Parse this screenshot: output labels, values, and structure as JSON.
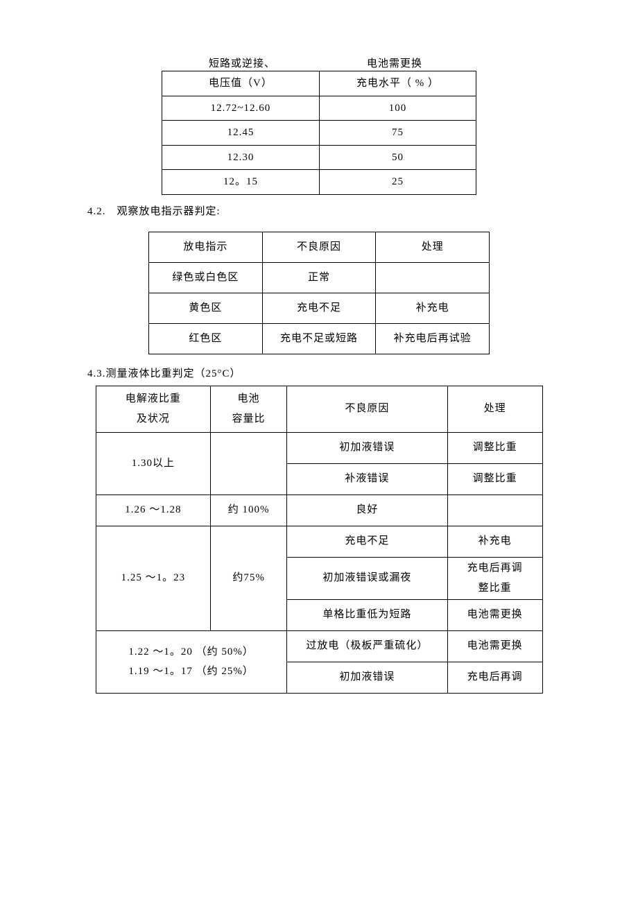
{
  "lineAbove": {
    "left": "短路或逆接、",
    "right": "电池需更换"
  },
  "table1": {
    "columns": [
      "电压值（V）",
      "充电水平（ % ）"
    ],
    "rows": [
      [
        "12.72~12.60",
        "100"
      ],
      [
        "12.45",
        "75"
      ],
      [
        "12.30",
        "50"
      ],
      [
        "12。15",
        "25"
      ]
    ]
  },
  "section42_title": "4.2.　观察放电指示器判定:",
  "table2": {
    "columns": [
      "放电指示",
      "不良原因",
      "处理"
    ],
    "rows": [
      [
        "绿色或白色区",
        "正常",
        ""
      ],
      [
        "黄色区",
        "充电不足",
        "补充电"
      ],
      [
        "红色区",
        "充电不足或短路",
        "补充电后再试验"
      ]
    ]
  },
  "section43_title": "4.3.测量液体比重判定（25°C）",
  "table3": {
    "columns": [
      "电解液比重\n及状况",
      "电池\n容量比",
      "不良原因",
      "处理"
    ],
    "group_130": {
      "label": "1.30以上",
      "capacity": "",
      "rows": [
        [
          "初加液错误",
          "调整比重"
        ],
        [
          "补液错误",
          "调整比重"
        ]
      ]
    },
    "row_126": {
      "label": "1.26 〜1.28",
      "capacity": "约 100%",
      "cause": "良好",
      "handle": ""
    },
    "group_125": {
      "label": "1.25 〜1。23",
      "capacity": "约75%",
      "rows": [
        [
          "充电不足",
          "补充电"
        ],
        [
          "初加液错误或漏夜",
          "充电后再调\n整比重"
        ],
        [
          "单格比重低为短路",
          "电池需更换"
        ]
      ]
    },
    "group_122": {
      "line1": "1.22 〜1。20 （约 50%）",
      "line2": "1.19 〜1。17 （约 25%）",
      "rows": [
        [
          "过放电（极板严重硫化）",
          "电池需更换"
        ],
        [
          "初加液错误",
          "充电后再调"
        ]
      ]
    }
  }
}
